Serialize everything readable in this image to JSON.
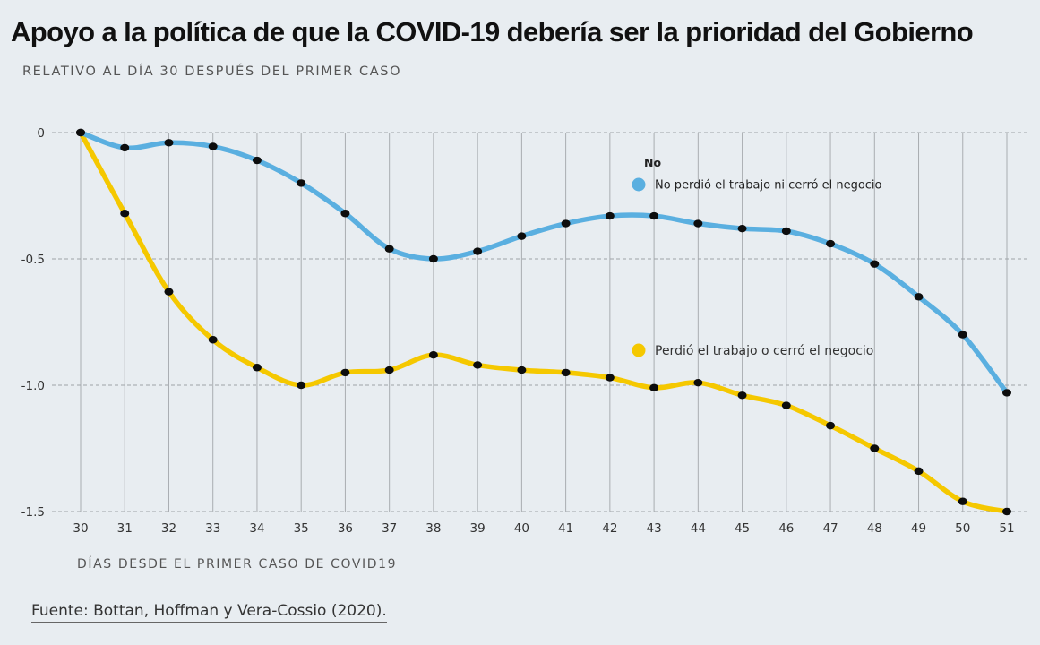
{
  "header": {
    "title": "Apoyo a la política de que la COVID-19 debería ser la prioridad del Gobierno",
    "subtitle": "RELATIVO AL DÍA 30 DESPUÉS DEL PRIMER CASO"
  },
  "footer": {
    "source": "Fuente: Bottan, Hoffman y Vera-Cossio (2020)."
  },
  "chart_data": {
    "type": "line",
    "title": "Apoyo a la política de que la COVID-19 debería ser la prioridad del Gobierno",
    "subtitle": "RELATIVO AL DÍA 30 DESPUÉS DEL PRIMER CASO",
    "xlabel": "DÍAS DESDE EL PRIMER CASO DE COVID19",
    "ylabel": "",
    "x": [
      30,
      31,
      32,
      33,
      34,
      35,
      36,
      37,
      38,
      39,
      40,
      41,
      42,
      43,
      44,
      45,
      46,
      47,
      48,
      49,
      50,
      51
    ],
    "ylim": [
      -1.5,
      0
    ],
    "yticks": [
      0,
      -0.5,
      -1.0,
      -1.5
    ],
    "ytick_labels": [
      "0",
      "-0.5",
      "-1.0",
      "-1.5"
    ],
    "grid": true,
    "legend": {
      "title": "No",
      "placement": "right",
      "entries": [
        {
          "label": "No perdió el trabajo ni cerró el negocio",
          "color": "#5aafe0"
        },
        {
          "label": "Perdió el trabajo o cerró el negocio",
          "color": "#f5c800"
        }
      ]
    },
    "series": [
      {
        "name": "No perdió el trabajo ni cerró el negocio",
        "color": "#5aafe0",
        "values": [
          0,
          -0.06,
          -0.04,
          -0.055,
          -0.11,
          -0.2,
          -0.32,
          -0.46,
          -0.5,
          -0.47,
          -0.41,
          -0.36,
          -0.33,
          -0.33,
          -0.36,
          -0.38,
          -0.39,
          -0.44,
          -0.52,
          -0.65,
          -0.8,
          -1.03
        ]
      },
      {
        "name": "Perdió el trabajo o cerró el negocio",
        "color": "#f5c800",
        "values": [
          0,
          -0.32,
          -0.63,
          -0.82,
          -0.93,
          -1.0,
          -0.95,
          -0.94,
          -0.88,
          -0.92,
          -0.94,
          -0.95,
          -0.97,
          -1.01,
          -0.99,
          -1.04,
          -1.08,
          -1.16,
          -1.25,
          -1.34,
          -1.46,
          -1.5
        ]
      }
    ]
  }
}
